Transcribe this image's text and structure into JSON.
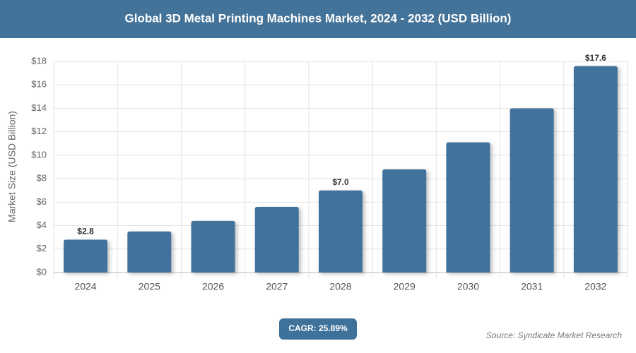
{
  "chart_data": {
    "type": "bar",
    "title": "Global 3D Metal Printing Machines Market, 2024 - 2032 (USD Billion)",
    "y_label": "Market Size (USD Billion)",
    "categories": [
      "2024",
      "2025",
      "2026",
      "2027",
      "2028",
      "2029",
      "2030",
      "2031",
      "2032"
    ],
    "values": [
      2.8,
      3.5,
      4.4,
      5.6,
      7.0,
      8.8,
      11.1,
      14.0,
      17.6
    ],
    "value_labels": [
      "$2.8",
      null,
      null,
      null,
      "$7.0",
      null,
      null,
      null,
      "$17.6"
    ],
    "color": "#3f729b",
    "ylim": [
      0,
      18
    ],
    "yticks": [
      {
        "value": 0,
        "label": "$0"
      },
      {
        "value": 2,
        "label": "$2"
      },
      {
        "value": 4,
        "label": "$4"
      },
      {
        "value": 6,
        "label": "$6"
      },
      {
        "value": 8,
        "label": "$8"
      },
      {
        "value": 10,
        "label": "$10"
      },
      {
        "value": 12,
        "label": "$12"
      },
      {
        "value": 14,
        "label": "$14"
      },
      {
        "value": 16,
        "label": "$16"
      },
      {
        "value": 18,
        "label": "$18"
      }
    ],
    "grid": true,
    "cagr": "CAGR: 25.89%",
    "source": "Source: Syndicate Market Research"
  }
}
